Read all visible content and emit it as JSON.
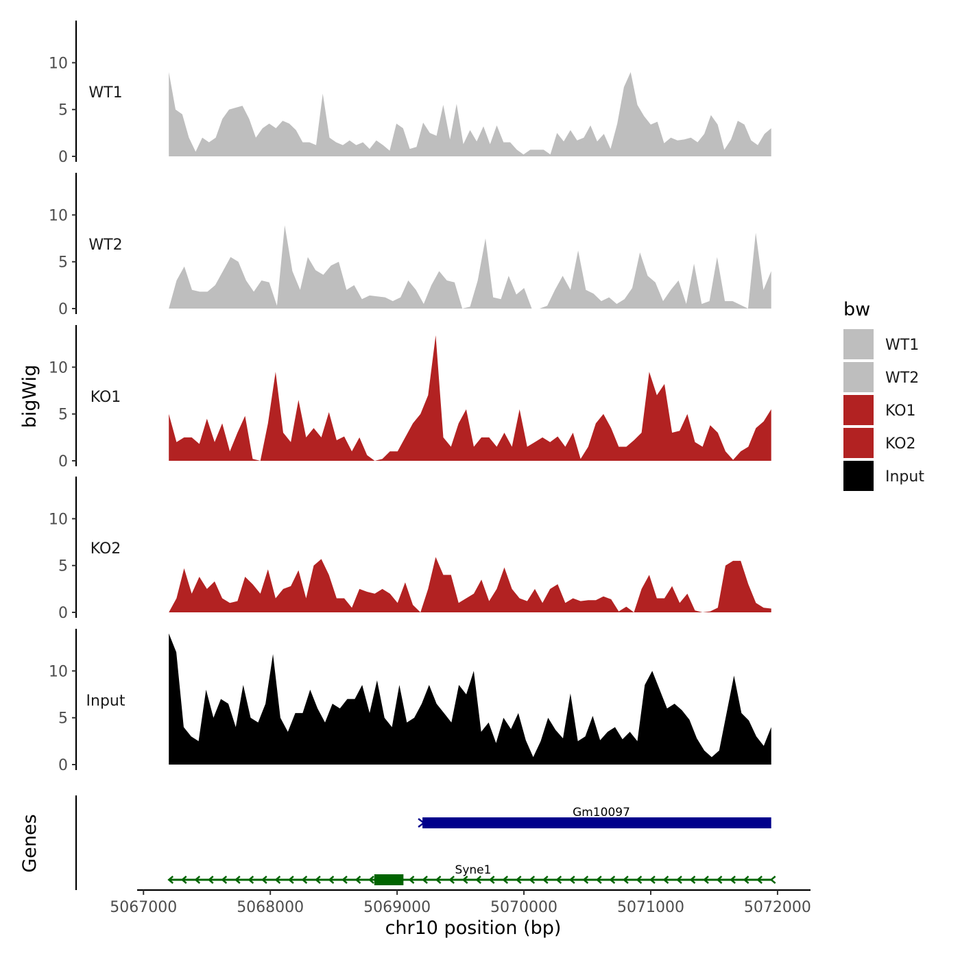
{
  "chart_data": {
    "type": "area",
    "ylabel": "bigWig",
    "xlabel": "chr10 position (bp)",
    "xlim": [
      5066950,
      5072260
    ],
    "ylim": [
      0,
      14.5
    ],
    "x_start": 5067200,
    "x_end": 5071950,
    "yticks": [
      0,
      5,
      10
    ],
    "ytick_labels": [
      "0",
      "5",
      "10"
    ],
    "xticks": [
      5067000,
      5068000,
      5069000,
      5070000,
      5071000,
      5072000
    ],
    "xtick_labels": [
      "5067000",
      "5068000",
      "5069000",
      "5070000",
      "5071000",
      "5072000"
    ],
    "legend": {
      "title": "bw",
      "position": "right",
      "entries": [
        {
          "label": "WT1",
          "color": "#bebebe"
        },
        {
          "label": "WT2",
          "color": "#bebebe"
        },
        {
          "label": "KO1",
          "color": "#b22222"
        },
        {
          "label": "KO2",
          "color": "#b22222"
        },
        {
          "label": "Input",
          "color": "#000000"
        }
      ]
    },
    "series": [
      {
        "name": "WT1",
        "color": "#bebebe",
        "values": [
          9,
          5,
          4.5,
          2,
          0.5,
          2,
          1.5,
          2,
          4,
          5,
          5.2,
          5.4,
          4,
          2,
          3,
          3.5,
          3,
          3.8,
          3.5,
          2.8,
          1.5,
          1.5,
          1.2,
          6.7,
          2,
          1.5,
          1.2,
          1.7,
          1.2,
          1.5,
          0.8,
          1.7,
          1.2,
          0.6,
          3.5,
          3,
          0.8,
          1,
          3.6,
          2.5,
          2.2,
          5.5,
          1.8,
          5.6,
          1.3,
          2.8,
          1.6,
          3.2,
          1.3,
          3.3,
          1.5,
          1.5,
          0.7,
          0.2,
          0.7,
          0.7,
          0.7,
          0.2,
          2.5,
          1.6,
          2.8,
          1.7,
          2,
          3.3,
          1.6,
          2.4,
          0.8,
          3.5,
          7.4,
          9,
          5.5,
          4.3,
          3.4,
          3.7,
          1.4,
          2,
          1.7,
          1.8,
          2,
          1.5,
          2.4,
          4.4,
          3.4,
          0.7,
          1.8,
          3.8,
          3.4,
          1.7,
          1.2,
          2.4,
          3
        ]
      },
      {
        "name": "WT2",
        "color": "#bebebe",
        "values": [
          0,
          3,
          4.5,
          2,
          1.8,
          1.8,
          2.5,
          4,
          5.5,
          5,
          3,
          1.8,
          3,
          2.8,
          0.3,
          8.9,
          4,
          2,
          5.5,
          4.1,
          3.6,
          4.6,
          5,
          2,
          2.5,
          1,
          1.4,
          1.3,
          1.2,
          0.8,
          1.2,
          3,
          2,
          0.5,
          2.5,
          4,
          3,
          2.8,
          0,
          0.2,
          3,
          7.5,
          1.2,
          1,
          3.5,
          1.5,
          2.2,
          0,
          0,
          0.3,
          2,
          3.5,
          2,
          6.2,
          2,
          1.6,
          0.8,
          1.2,
          0.5,
          1,
          2.2,
          6,
          3.5,
          2.8,
          0.8,
          2,
          3,
          0.5,
          4.8,
          0.5,
          0.8,
          5.5,
          0.8,
          0.8,
          0.4,
          0,
          8.1,
          2,
          4
        ]
      },
      {
        "name": "KO1",
        "color": "#b22222",
        "values": [
          5,
          2,
          2.5,
          2.5,
          1.8,
          4.5,
          2,
          4,
          1,
          3,
          4.8,
          0.2,
          0,
          4,
          9.5,
          3,
          2,
          6.5,
          2.5,
          3.5,
          2.5,
          5.2,
          2.2,
          2.6,
          1,
          2.5,
          0.6,
          0,
          0.2,
          1,
          1,
          2.5,
          4,
          5,
          7,
          13.4,
          2.5,
          1.5,
          4,
          5.5,
          1.5,
          2.5,
          2.5,
          1.5,
          3,
          1.5,
          5.5,
          1.5,
          2,
          2.5,
          2,
          2.6,
          1.5,
          3,
          0.2,
          1.5,
          4,
          5,
          3.5,
          1.5,
          1.5,
          2.2,
          3,
          9.5,
          7,
          8.2,
          3,
          3.2,
          5,
          2,
          1.5,
          3.8,
          3,
          1,
          0.1,
          1,
          1.5,
          3.5,
          4.2,
          5.5
        ]
      },
      {
        "name": "KO2",
        "color": "#b22222",
        "values": [
          0,
          1.5,
          4.7,
          2,
          3.8,
          2.5,
          3.3,
          1.5,
          1,
          1.2,
          3.8,
          3,
          2,
          4.6,
          1.5,
          2.5,
          2.8,
          4.5,
          1.5,
          5,
          5.7,
          4,
          1.5,
          1.5,
          0.5,
          2.5,
          2.2,
          2,
          2.5,
          2,
          1,
          3.2,
          0.8,
          0,
          2.5,
          5.9,
          4,
          4,
          1,
          1.5,
          2,
          3.5,
          1.2,
          2.5,
          4.8,
          2.5,
          1.5,
          1.2,
          2.5,
          1,
          2.5,
          3,
          1,
          1.5,
          1.2,
          1.3,
          1.3,
          1.7,
          1.4,
          0.1,
          0.6,
          0,
          2.5,
          4,
          1.5,
          1.5,
          2.8,
          1,
          2,
          0.2,
          0,
          0.1,
          0.5,
          5,
          5.5,
          5.5,
          3,
          1,
          0.5,
          0.4
        ]
      },
      {
        "name": "Input",
        "color": "#000000",
        "values": [
          14,
          12,
          4,
          3,
          2.5,
          8,
          5,
          7,
          6.5,
          4,
          8.5,
          5,
          4.5,
          6.5,
          11.8,
          5,
          3.5,
          5.5,
          5.5,
          8,
          6,
          4.5,
          6.5,
          6,
          7,
          7,
          8.5,
          5.5,
          9,
          5,
          4,
          8.5,
          4.5,
          5,
          6.5,
          8.5,
          6.5,
          5.5,
          4.5,
          8.5,
          7.5,
          10,
          3.5,
          4.5,
          2.3,
          5,
          3.8,
          5.5,
          2.6,
          0.8,
          2.5,
          5,
          3.7,
          2.8,
          7.6,
          2.5,
          3,
          5.2,
          2.6,
          3.5,
          4,
          2.7,
          3.5,
          2.5,
          8.5,
          10,
          8,
          6,
          6.5,
          5.8,
          4.8,
          2.8,
          1.5,
          0.8,
          1.5,
          5.5,
          9.5,
          5.5,
          4.7,
          3,
          2,
          4
        ]
      }
    ],
    "genes_track": {
      "ylabel": "Genes",
      "genes": [
        {
          "name": "Gm10097",
          "start": 5069200,
          "end": 5071950,
          "strand": "+",
          "color": "#00008b",
          "exons": [
            [
              5069200,
              5071950
            ]
          ]
        },
        {
          "name": "Syne1",
          "start": 5067200,
          "end": 5071950,
          "strand": "-",
          "color": "#006400",
          "exons": [
            [
              5068820,
              5069050
            ]
          ]
        }
      ]
    }
  }
}
